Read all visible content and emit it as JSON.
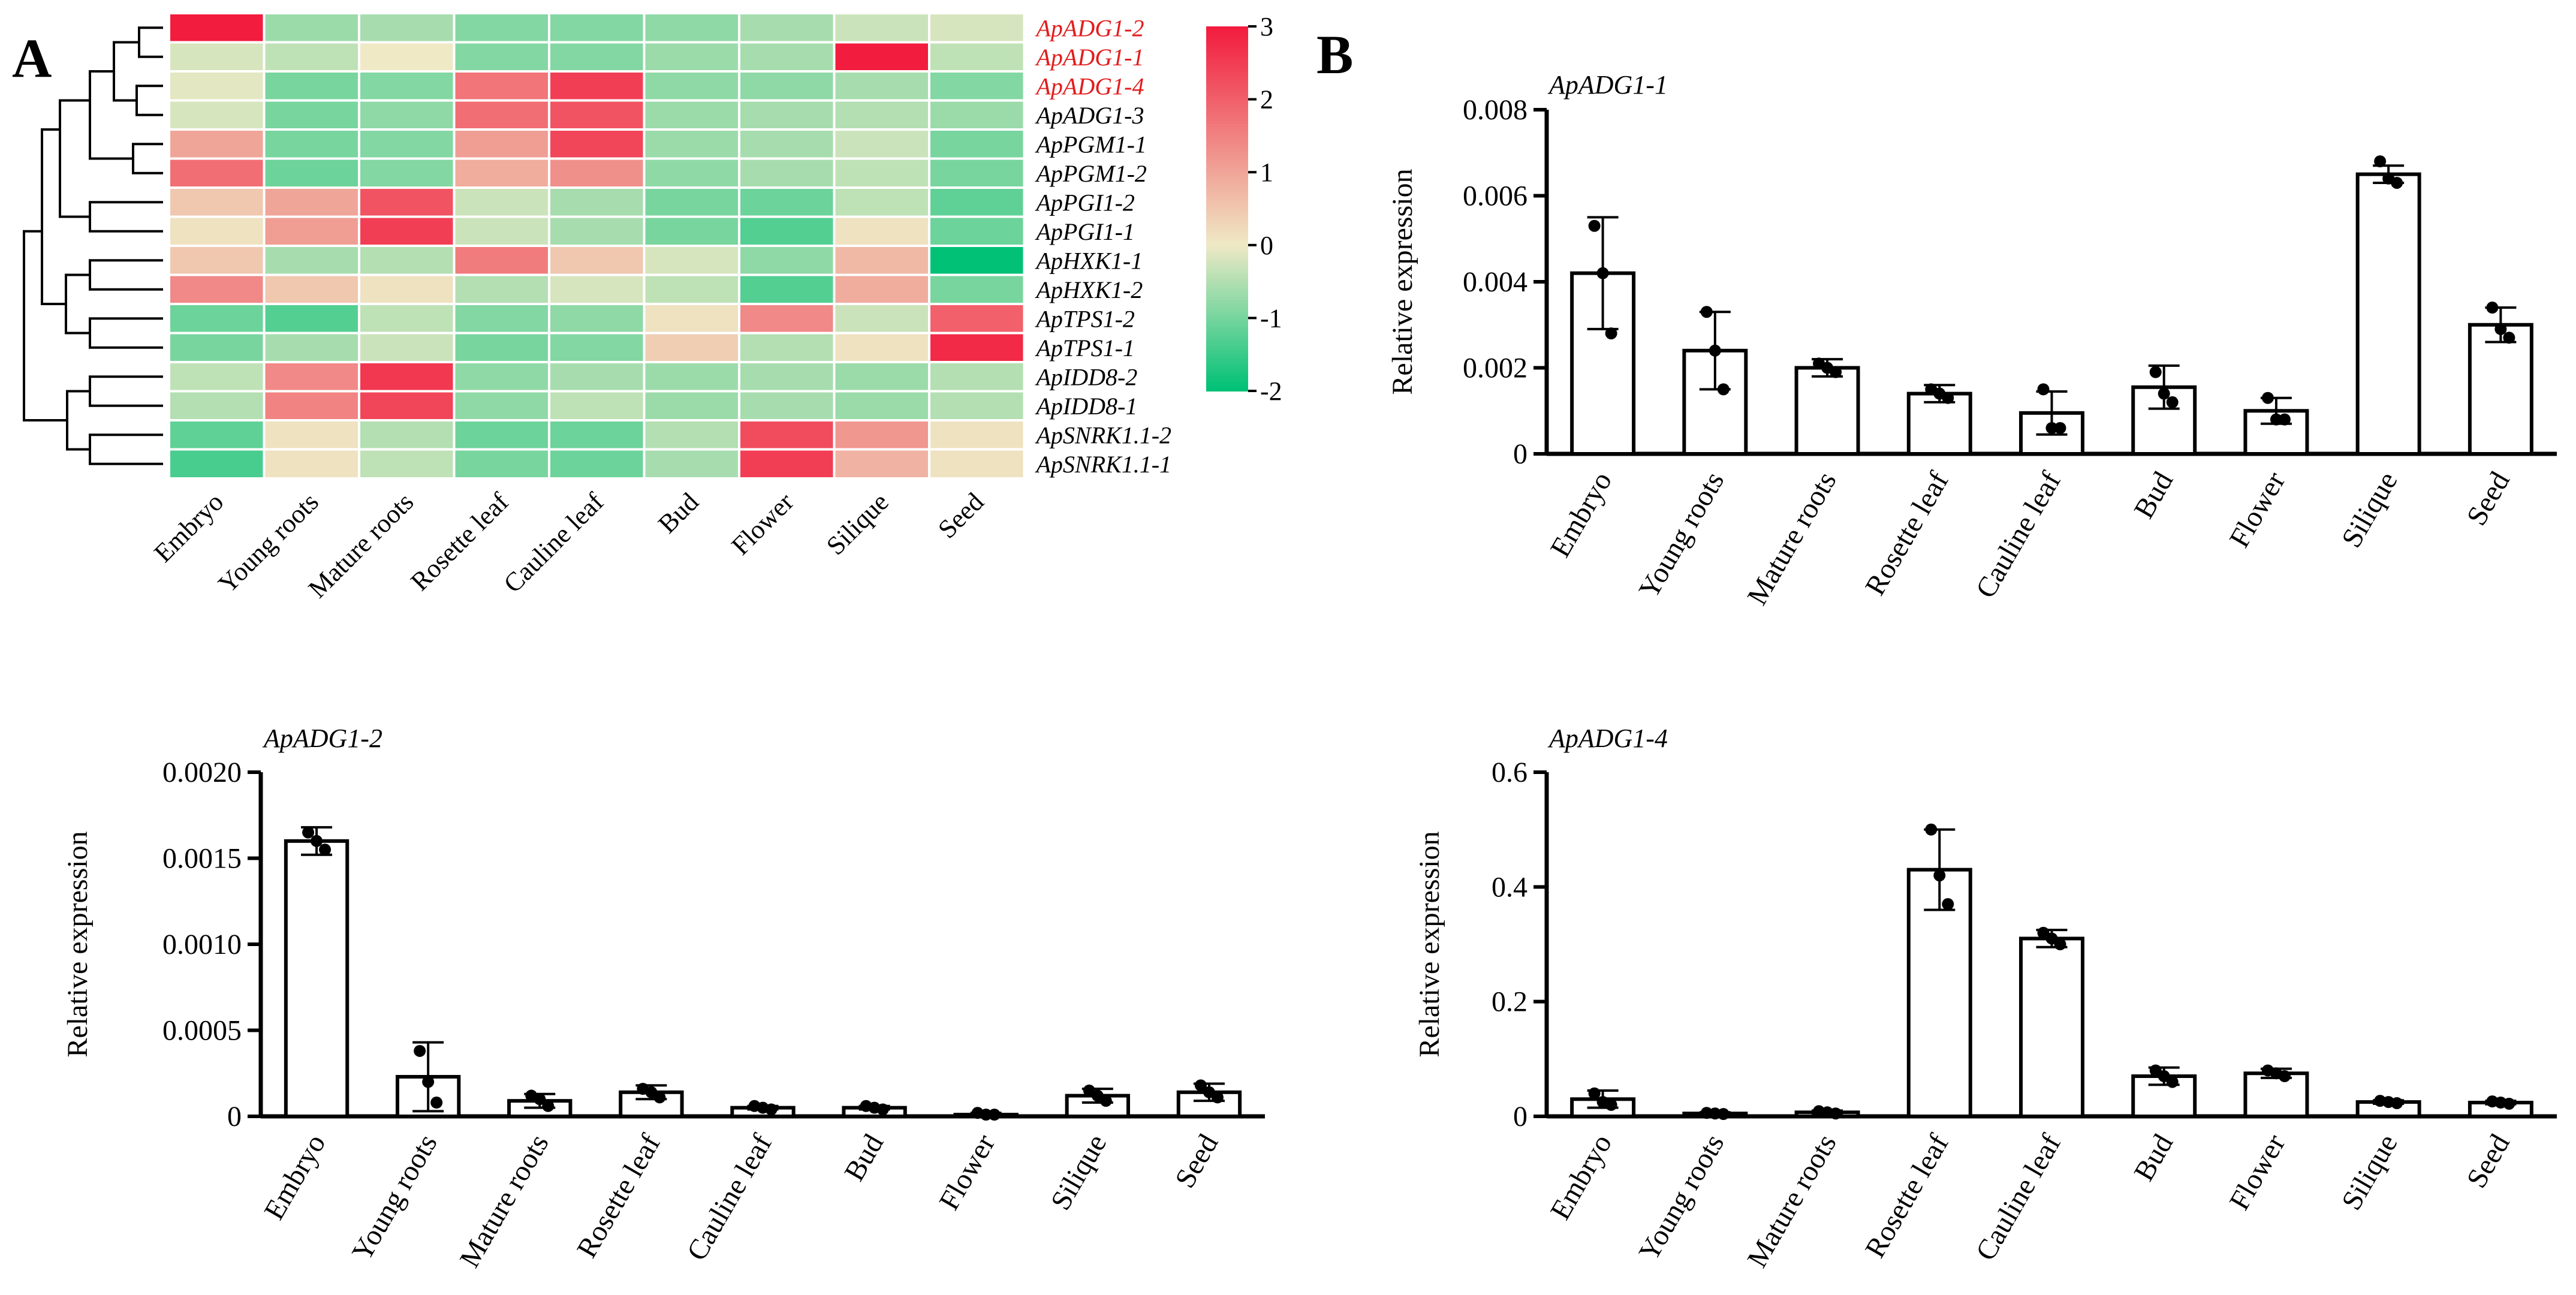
{
  "colors": {
    "high": "#f21c3e",
    "mid": "#efe9c6",
    "low": "#00c176",
    "highlight_label": "#e21d1d",
    "ink": "#000000",
    "cell_border": "#ffffff"
  },
  "panels": {
    "a_letter": "A",
    "b_letter": "B"
  },
  "chart_data": [
    {
      "type": "heatmap",
      "panel": "A",
      "title": "",
      "columns": [
        "Embryo",
        "Young roots",
        "Mature roots",
        "Rosette leaf",
        "Cauline leaf",
        "Bud",
        "Flower",
        "Silique",
        "Seed"
      ],
      "rows": [
        {
          "label": "ApADG1-2",
          "highlight": true,
          "values": [
            3.0,
            -0.7,
            -0.6,
            -0.9,
            -0.9,
            -0.8,
            -0.6,
            -0.3,
            -0.2
          ]
        },
        {
          "label": "ApADG1-1",
          "highlight": true,
          "values": [
            -0.2,
            -0.4,
            0.0,
            -0.9,
            -0.9,
            -0.7,
            -0.6,
            3.0,
            -0.4
          ]
        },
        {
          "label": "ApADG1-4",
          "highlight": true,
          "values": [
            -0.1,
            -1.0,
            -0.9,
            1.7,
            2.5,
            -0.8,
            -0.8,
            -0.6,
            -0.9
          ]
        },
        {
          "label": "ApADG1-3",
          "highlight": false,
          "values": [
            -0.2,
            -1.0,
            -0.8,
            1.8,
            2.2,
            -0.7,
            -0.6,
            -0.5,
            -0.7
          ]
        },
        {
          "label": "ApPGM1-1",
          "highlight": false,
          "values": [
            1.0,
            -1.0,
            -0.9,
            1.1,
            2.4,
            -0.7,
            -0.6,
            -0.3,
            -1.0
          ]
        },
        {
          "label": "ApPGM1-2",
          "highlight": false,
          "values": [
            1.8,
            -1.1,
            -0.9,
            0.9,
            1.3,
            -0.8,
            -0.6,
            -0.4,
            -1.0
          ]
        },
        {
          "label": "ApPGI1-2",
          "highlight": false,
          "values": [
            0.5,
            1.0,
            2.2,
            -0.3,
            -0.6,
            -1.0,
            -1.1,
            -0.4,
            -1.2
          ]
        },
        {
          "label": "ApPGI1-1",
          "highlight": false,
          "values": [
            0.1,
            1.1,
            2.5,
            -0.3,
            -0.6,
            -1.0,
            -1.3,
            0.1,
            -1.1
          ]
        },
        {
          "label": "ApHXK1-1",
          "highlight": false,
          "values": [
            0.5,
            -0.6,
            -0.5,
            1.6,
            0.5,
            -0.2,
            -0.8,
            0.7,
            -2.0
          ]
        },
        {
          "label": "ApHXK1-2",
          "highlight": false,
          "values": [
            1.4,
            0.5,
            0.1,
            -0.5,
            -0.2,
            -0.4,
            -1.3,
            0.9,
            -1.0
          ]
        },
        {
          "label": "ApTPS1-2",
          "highlight": false,
          "values": [
            -1.1,
            -1.3,
            -0.4,
            -0.9,
            -0.8,
            0.1,
            1.4,
            -0.3,
            2.0
          ]
        },
        {
          "label": "ApTPS1-1",
          "highlight": false,
          "values": [
            -1.0,
            -0.6,
            -0.3,
            -1.0,
            -0.9,
            0.4,
            -0.5,
            0.1,
            2.8
          ]
        },
        {
          "label": "ApIDD8-2",
          "highlight": false,
          "values": [
            -0.4,
            1.4,
            2.6,
            -0.8,
            -0.6,
            -0.7,
            -0.6,
            -0.7,
            -0.5
          ]
        },
        {
          "label": "ApIDD8-1",
          "highlight": false,
          "values": [
            -0.5,
            1.5,
            2.4,
            -0.8,
            -0.4,
            -0.7,
            -0.6,
            -0.7,
            -0.5
          ]
        },
        {
          "label": "ApSNRK1.1-2",
          "highlight": false,
          "values": [
            -1.2,
            0.1,
            -0.5,
            -1.1,
            -1.1,
            -0.5,
            2.3,
            1.2,
            0.1
          ]
        },
        {
          "label": "ApSNRK1.1-1",
          "highlight": false,
          "values": [
            -1.4,
            0.1,
            -0.4,
            -1.0,
            -1.1,
            -0.6,
            2.5,
            0.8,
            0.1
          ]
        }
      ],
      "colorbar": {
        "min": -2,
        "max": 3,
        "ticks": [
          "3",
          "2",
          "1",
          "0",
          "-1",
          "-2"
        ]
      }
    },
    {
      "type": "bar",
      "panel": "B",
      "title": "ApADG1-1",
      "ylabel": "Relative expression",
      "categories": [
        "Embryo",
        "Young roots",
        "Mature roots",
        "Rosette leaf",
        "Cauline leaf",
        "Bud",
        "Flower",
        "Silique",
        "Seed"
      ],
      "values": [
        0.0042,
        0.0024,
        0.002,
        0.0014,
        0.00095,
        0.00155,
        0.001,
        0.0065,
        0.003
      ],
      "errors": [
        0.0013,
        0.0009,
        0.0002,
        0.0002,
        0.0005,
        0.0005,
        0.0003,
        0.0002,
        0.0004
      ],
      "points": [
        [
          0.0053,
          0.0042,
          0.0028
        ],
        [
          0.0033,
          0.0024,
          0.0015
        ],
        [
          0.0021,
          0.002,
          0.0019
        ],
        [
          0.0015,
          0.0014,
          0.0013
        ],
        [
          0.0015,
          0.0006,
          0.0006
        ],
        [
          0.0019,
          0.0014,
          0.0012
        ],
        [
          0.0013,
          0.0008,
          0.0008
        ],
        [
          0.0068,
          0.0064,
          0.0063
        ],
        [
          0.0034,
          0.0029,
          0.0027
        ]
      ],
      "ylim": [
        0,
        0.008
      ],
      "yticks": [
        "0",
        "0.002",
        "0.004",
        "0.006",
        "0.008"
      ]
    },
    {
      "type": "bar",
      "panel": "B",
      "title": "ApADG1-2",
      "ylabel": "Relative expression",
      "categories": [
        "Embryo",
        "Young roots",
        "Mature roots",
        "Rosette leaf",
        "Cauline leaf",
        "Bud",
        "Flower",
        "Silique",
        "Seed"
      ],
      "values": [
        0.0016,
        0.00023,
        9e-05,
        0.00014,
        5e-05,
        5e-05,
        1e-05,
        0.00012,
        0.00014
      ],
      "errors": [
        8e-05,
        0.0002,
        4e-05,
        4e-05,
        1e-05,
        1e-05,
        1e-05,
        4e-05,
        5e-05
      ],
      "points": [
        [
          0.00165,
          0.0016,
          0.00155
        ],
        [
          0.00038,
          0.0002,
          8e-05
        ],
        [
          0.00012,
          0.0001,
          6e-05
        ],
        [
          0.00016,
          0.00014,
          0.00011
        ],
        [
          6e-05,
          5e-05,
          4e-05
        ],
        [
          6e-05,
          5e-05,
          4e-05
        ],
        [
          2e-05,
          1e-05,
          1e-05
        ],
        [
          0.00015,
          0.00012,
          9e-05
        ],
        [
          0.00018,
          0.00014,
          0.00011
        ]
      ],
      "ylim": [
        0,
        0.002
      ],
      "yticks": [
        "0",
        "0.0005",
        "0.0010",
        "0.0015",
        "0.0020"
      ]
    },
    {
      "type": "bar",
      "panel": "B",
      "title": "ApADG1-4",
      "ylabel": "Relative expression",
      "categories": [
        "Embryo",
        "Young roots",
        "Mature roots",
        "Rosette leaf",
        "Cauline leaf",
        "Bud",
        "Flower",
        "Silique",
        "Seed"
      ],
      "values": [
        0.03,
        0.005,
        0.007,
        0.43,
        0.31,
        0.07,
        0.075,
        0.025,
        0.024
      ],
      "errors": [
        0.015,
        0.002,
        0.003,
        0.07,
        0.015,
        0.015,
        0.008,
        0.003,
        0.003
      ],
      "points": [
        [
          0.04,
          0.025,
          0.02
        ],
        [
          0.006,
          0.005,
          0.004
        ],
        [
          0.009,
          0.007,
          0.005
        ],
        [
          0.5,
          0.42,
          0.37
        ],
        [
          0.32,
          0.31,
          0.3
        ],
        [
          0.08,
          0.07,
          0.06
        ],
        [
          0.08,
          0.075,
          0.07
        ],
        [
          0.027,
          0.025,
          0.023
        ],
        [
          0.026,
          0.024,
          0.022
        ]
      ],
      "ylim": [
        0,
        0.6
      ],
      "yticks": [
        "0",
        "0.2",
        "0.4",
        "0.6"
      ]
    }
  ]
}
